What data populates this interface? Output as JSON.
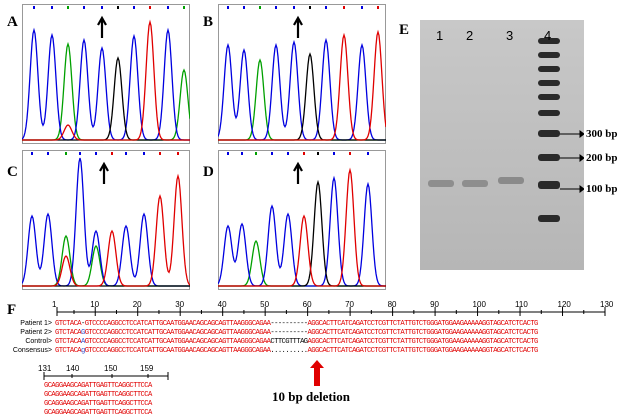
{
  "panels": {
    "a": "A",
    "b": "B",
    "c": "C",
    "d": "D",
    "e": "E",
    "f": "F"
  },
  "gel": {
    "lanes": [
      "1",
      "2",
      "3",
      "4"
    ],
    "ladder_labels": [
      "300 bp",
      "200 bp",
      "100 bp"
    ]
  },
  "alignment": {
    "positions": [
      "1",
      "10",
      "20",
      "30",
      "40",
      "50",
      "60",
      "70",
      "80",
      "90",
      "100",
      "110",
      "120",
      "130"
    ],
    "rows": [
      {
        "label": "Patient 1>",
        "pre": "GTCTACA",
        "mid_special": "-",
        "seq1": "GTCCCC",
        "seq2": "AGGCCTCCATCATTGCAATGGAACAGCAGCAGTTAAGGGCAGAA",
        "gap": "----------",
        "seq3": "AGGCACTTCATCAGATCCTCGTTCTATTGTCTGGGATGGAAGAAAAAGGTAGCATCTCACTG"
      },
      {
        "label": "Patient 2>",
        "pre": "GTCTACA",
        "mid_special": "G",
        "seq1": "GTCCCC",
        "seq2": "AGGCCTCCATCATTGCAATGGAACAGCAGCAGTTAAGGGCAGAA",
        "gap": "----------",
        "seq3": "AGGCACTTCATCAGATCCTCGTTCTATTGTCTGGGATGGAAGAAAAAGGTAGCATCTCACTG"
      },
      {
        "label": "Control>",
        "pre": "GTCTACA",
        "mid_special": "A",
        "seq1": "GTCCCC",
        "seq2": "AGGCCTCCATCATTGCAATGGAACAGCAGCAGTTAAGGGCAGAA",
        "gap": "CTTCGTTTAG",
        "seq3": "AGGCACTTCATCAGATCCTCGTTCTATTGTCTGGGATGGAAGAAAAAGGTAGCATCTCACTG"
      },
      {
        "label": "Consensus>",
        "pre": "GTCTACA",
        "mid_special": "g",
        "seq1": "GTCCCC",
        "seq2": "AGGCCTCCATCATTGCAATGGAACAGCAGCAGTTAAGGGCAGAA",
        "gap": "..........",
        "seq3": "AGGCACTTCATCAGATCCTCGTTCTATTGTCTGGGATGGAAGAAAAAGGTAGCATCTCACTG"
      }
    ],
    "positions2": [
      "131",
      "140",
      "150",
      "159"
    ],
    "tail": "GCAGGAAGCAGATTGAGTTCAGGCTTCCA",
    "deletion_label": "10 bp deletion"
  },
  "colors": {
    "A": "#00a000",
    "C": "#0000e0",
    "G": "#000000",
    "T": "#e00000"
  }
}
